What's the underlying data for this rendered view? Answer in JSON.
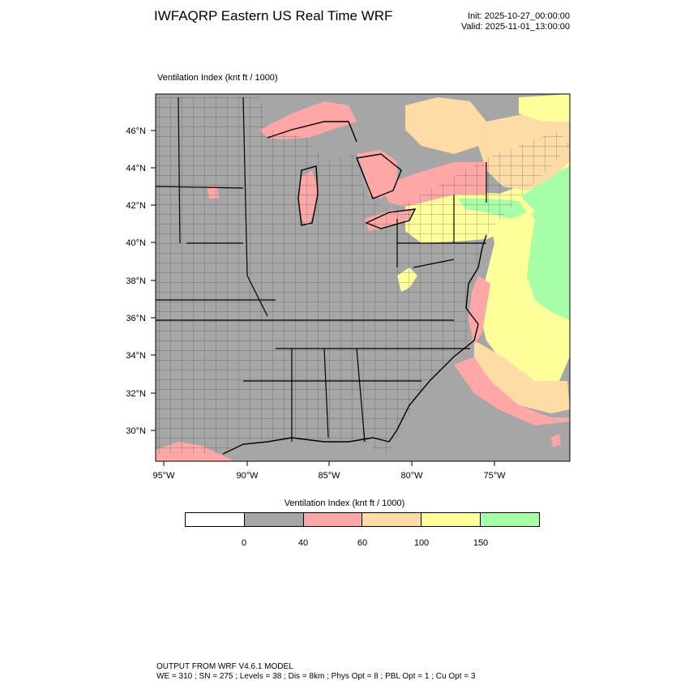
{
  "header": {
    "title": "IWFAQRP Eastern US Real Time WRF",
    "init": "Init: 2025-10-27_00:00:00",
    "valid": "Valid: 2025-11-01_13:00:00"
  },
  "plot": {
    "title": "Ventilation Index   (knt ft / 1000)",
    "lat_labels": [
      "46°N",
      "44°N",
      "42°N",
      "40°N",
      "38°N",
      "36°N",
      "34°N",
      "32°N",
      "30°N"
    ],
    "lon_labels": [
      "95°W",
      "90°W",
      "85°W",
      "80°W",
      "75°W"
    ]
  },
  "colorbar": {
    "title": "Ventilation Index  (knt ft / 1000)",
    "colors": [
      "#ffffff",
      "#a6a6a6",
      "#ffa6a6",
      "#ffdca6",
      "#ffff99",
      "#a6ffa6"
    ],
    "labels": [
      "0",
      "40",
      "60",
      "100",
      "150"
    ]
  },
  "footer": {
    "line1": "OUTPUT FROM WRF V4.6.1 MODEL",
    "line2": "WE = 310 ; SN = 275 ; Levels = 38 ; Dis = 8km ; Phys Opt = 8 ; PBL Opt = 1 ; Cu Opt = 3"
  }
}
